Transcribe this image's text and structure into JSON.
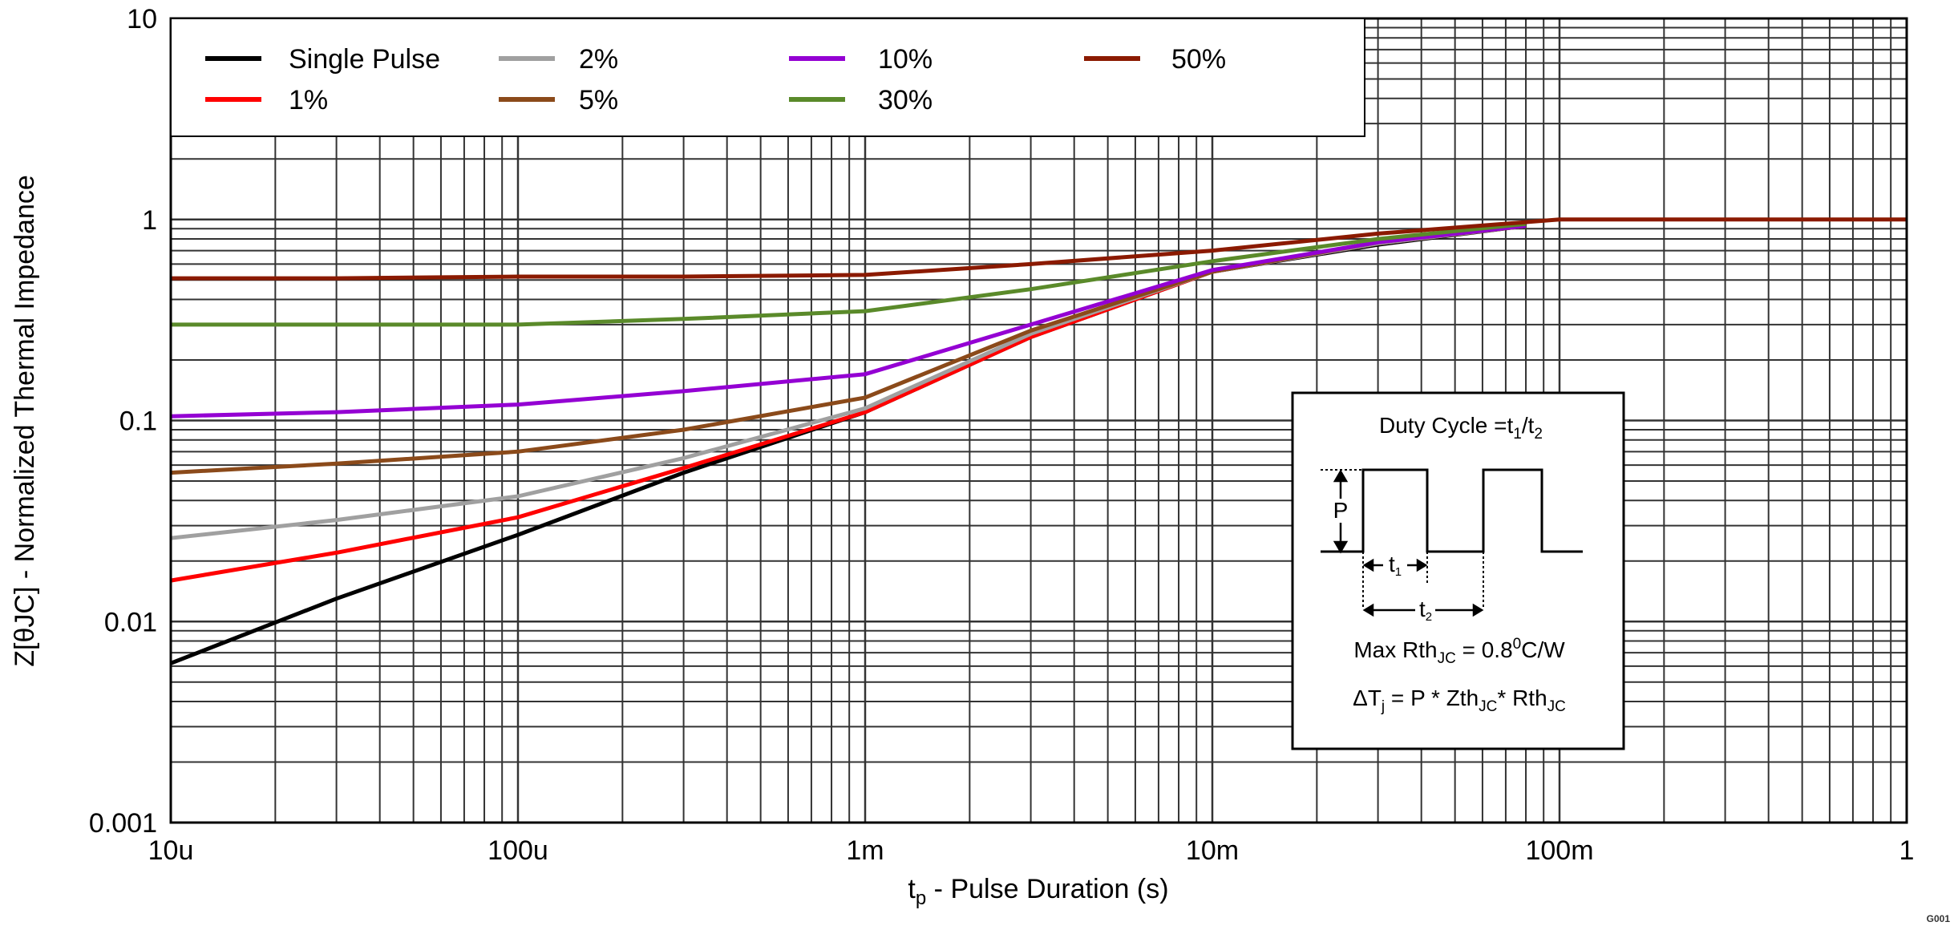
{
  "chart_data": {
    "type": "line",
    "xscale": "log",
    "yscale": "log",
    "xlim": [
      1e-05,
      1
    ],
    "ylim": [
      0.001,
      10
    ],
    "grid": true,
    "legend_placement": "top-left",
    "xlabel": {
      "main": "t",
      "sub": "p",
      "rest": " - Pulse Duration (s)"
    },
    "ylabel": "Z[θJC] - Normalized Thermal Impedance",
    "xticks": [
      {
        "value": 1e-05,
        "label": "10u"
      },
      {
        "value": 0.0001,
        "label": "100u"
      },
      {
        "value": 0.001,
        "label": "1m"
      },
      {
        "value": 0.01,
        "label": "10m"
      },
      {
        "value": 0.1,
        "label": "100m"
      },
      {
        "value": 1,
        "label": "1"
      }
    ],
    "yticks": [
      {
        "value": 10,
        "label": "10"
      },
      {
        "value": 1,
        "label": "1"
      },
      {
        "value": 0.1,
        "label": "0.1"
      },
      {
        "value": 0.01,
        "label": "0.01"
      },
      {
        "value": 0.001,
        "label": "0.001"
      }
    ],
    "series": [
      {
        "name": "Single Pulse",
        "color": "#000000",
        "x": [
          1e-05,
          3e-05,
          0.0001,
          0.0003,
          0.001,
          0.003,
          0.01,
          0.03,
          0.08
        ],
        "y": [
          0.0062,
          0.013,
          0.027,
          0.055,
          0.11,
          0.26,
          0.55,
          0.75,
          0.93
        ]
      },
      {
        "name": "1%",
        "color": "#ff0000",
        "x": [
          1e-05,
          3e-05,
          0.0001,
          0.0003,
          0.001,
          0.003,
          0.01,
          0.03,
          0.08
        ],
        "y": [
          0.016,
          0.022,
          0.033,
          0.058,
          0.11,
          0.26,
          0.55,
          0.76,
          0.93
        ]
      },
      {
        "name": "2%",
        "color": "#a0a0a0",
        "x": [
          1e-05,
          3e-05,
          0.0001,
          0.0003,
          0.001,
          0.003,
          0.01,
          0.03,
          0.08
        ],
        "y": [
          0.026,
          0.032,
          0.042,
          0.065,
          0.115,
          0.27,
          0.55,
          0.76,
          0.93
        ]
      },
      {
        "name": "5%",
        "color": "#8b4a1a",
        "x": [
          1e-05,
          3e-05,
          0.0001,
          0.0003,
          0.001,
          0.003,
          0.01,
          0.03,
          0.08
        ],
        "y": [
          0.055,
          0.061,
          0.07,
          0.09,
          0.13,
          0.28,
          0.55,
          0.77,
          0.93
        ]
      },
      {
        "name": "10%",
        "color": "#9400d3",
        "x": [
          1e-05,
          3e-05,
          0.0001,
          0.0003,
          0.001,
          0.003,
          0.01,
          0.03,
          0.08
        ],
        "y": [
          0.105,
          0.11,
          0.12,
          0.14,
          0.17,
          0.3,
          0.56,
          0.77,
          0.93
        ]
      },
      {
        "name": "30%",
        "color": "#5a8a2a",
        "x": [
          1e-05,
          3e-05,
          0.0001,
          0.0003,
          0.001,
          0.003,
          0.01,
          0.03,
          0.08
        ],
        "y": [
          0.3,
          0.3,
          0.3,
          0.32,
          0.35,
          0.45,
          0.62,
          0.8,
          0.95
        ]
      },
      {
        "name": "50%",
        "color": "#8b1a00",
        "x": [
          1e-05,
          3e-05,
          0.0001,
          0.0003,
          0.001,
          0.003,
          0.01,
          0.03,
          0.1,
          1
        ],
        "y": [
          0.51,
          0.51,
          0.52,
          0.52,
          0.53,
          0.6,
          0.7,
          0.85,
          1.0,
          1.0
        ]
      }
    ],
    "inset": {
      "title": {
        "a": "Duty Cycle =t",
        "s1": "1",
        "b": "/t",
        "s2": "2"
      },
      "p_label": "P",
      "t1": {
        "main": "t",
        "sub": "1"
      },
      "t2": {
        "main": "t",
        "sub": "2"
      },
      "rth": {
        "a": "Max Rth",
        "sub": "JC",
        "b": " = 0.8",
        "sup": "0",
        "c": "C/W"
      },
      "delta": {
        "a": "ΔT",
        "s1": "j",
        "b": " = P * Zth",
        "s2": "JC",
        "c": "* Rth",
        "s3": "JC"
      }
    },
    "figure_id": "G001"
  }
}
